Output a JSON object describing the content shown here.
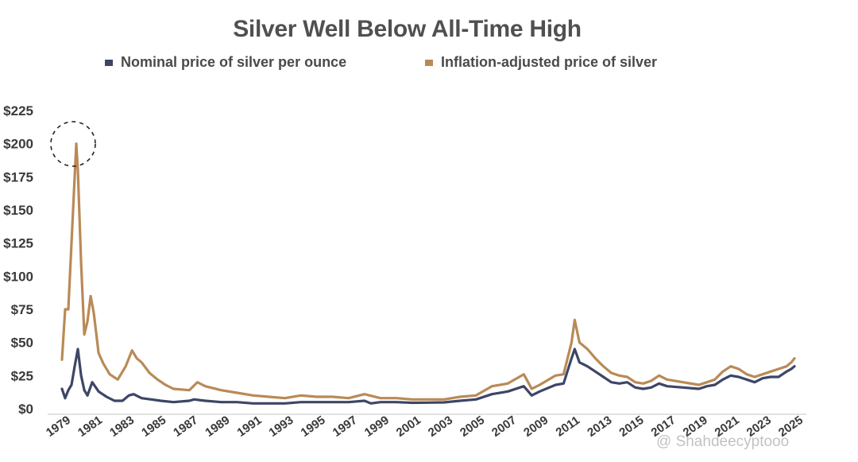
{
  "chart_data": {
    "type": "line",
    "title": "Silver Well Below All-Time High",
    "xlabel": "",
    "ylabel": "",
    "ylim": [
      0,
      225
    ],
    "yticks": [
      "$0",
      "$25",
      "$50",
      "$75",
      "$100",
      "$125",
      "$150",
      "$175",
      "$200",
      "$225"
    ],
    "xticks": [
      "1979",
      "1981",
      "1983",
      "1985",
      "1987",
      "1989",
      "1991",
      "1993",
      "1995",
      "1997",
      "1999",
      "2001",
      "2003",
      "2005",
      "2007",
      "2009",
      "2011",
      "2013",
      "2015",
      "2017",
      "2019",
      "2021",
      "2023",
      "2025"
    ],
    "legend_position": "top",
    "grid": false,
    "annotation": "dashed circle around 1980 peak",
    "series": [
      {
        "name": "Nominal price of silver per ounce",
        "color": "#3d4666",
        "points": [
          [
            1979.0,
            15
          ],
          [
            1979.2,
            8
          ],
          [
            1979.4,
            14
          ],
          [
            1979.6,
            18
          ],
          [
            1979.8,
            32
          ],
          [
            1980.0,
            45
          ],
          [
            1980.2,
            25
          ],
          [
            1980.4,
            14
          ],
          [
            1980.6,
            10
          ],
          [
            1980.9,
            20
          ],
          [
            1981.3,
            13
          ],
          [
            1981.8,
            9
          ],
          [
            1982.3,
            6
          ],
          [
            1982.8,
            6
          ],
          [
            1983.2,
            10
          ],
          [
            1983.5,
            11
          ],
          [
            1984.0,
            8
          ],
          [
            1984.6,
            7
          ],
          [
            1985.2,
            6
          ],
          [
            1986.0,
            5
          ],
          [
            1987.0,
            6
          ],
          [
            1987.3,
            7
          ],
          [
            1988.0,
            6
          ],
          [
            1989.0,
            5
          ],
          [
            1990.0,
            5
          ],
          [
            1991.0,
            4
          ],
          [
            1992.0,
            4
          ],
          [
            1993.0,
            4
          ],
          [
            1994.0,
            5
          ],
          [
            1995.0,
            5
          ],
          [
            1996.0,
            5
          ],
          [
            1997.0,
            5
          ],
          [
            1998.0,
            6
          ],
          [
            1998.4,
            4
          ],
          [
            1999.0,
            5
          ],
          [
            2000.0,
            5
          ],
          [
            2001.0,
            4.5
          ],
          [
            2002.0,
            4.6
          ],
          [
            2003.0,
            4.8
          ],
          [
            2004.0,
            6
          ],
          [
            2005.0,
            7
          ],
          [
            2006.0,
            11
          ],
          [
            2007.0,
            13
          ],
          [
            2008.0,
            17
          ],
          [
            2008.5,
            10
          ],
          [
            2009.0,
            13
          ],
          [
            2010.0,
            18
          ],
          [
            2010.5,
            19
          ],
          [
            2011.0,
            38
          ],
          [
            2011.2,
            45
          ],
          [
            2011.5,
            35
          ],
          [
            2012.0,
            32
          ],
          [
            2012.5,
            28
          ],
          [
            2013.0,
            24
          ],
          [
            2013.5,
            20
          ],
          [
            2014.0,
            19
          ],
          [
            2014.5,
            20
          ],
          [
            2015.0,
            16
          ],
          [
            2015.5,
            15
          ],
          [
            2016.0,
            16
          ],
          [
            2016.5,
            19
          ],
          [
            2017.0,
            17
          ],
          [
            2018.0,
            16
          ],
          [
            2019.0,
            15
          ],
          [
            2019.5,
            17
          ],
          [
            2020.0,
            18
          ],
          [
            2020.5,
            22
          ],
          [
            2021.0,
            25
          ],
          [
            2021.5,
            24
          ],
          [
            2022.0,
            22
          ],
          [
            2022.5,
            20
          ],
          [
            2023.0,
            23
          ],
          [
            2023.5,
            24
          ],
          [
            2024.0,
            24
          ],
          [
            2024.5,
            28
          ],
          [
            2024.8,
            30
          ],
          [
            2025.0,
            32
          ]
        ]
      },
      {
        "name": "Inflation-adjusted price of silver",
        "color": "#b98a57",
        "points": [
          [
            1979.0,
            37
          ],
          [
            1979.2,
            75
          ],
          [
            1979.4,
            75
          ],
          [
            1979.5,
            100
          ],
          [
            1979.7,
            150
          ],
          [
            1979.9,
            200
          ],
          [
            1980.0,
            180
          ],
          [
            1980.2,
            110
          ],
          [
            1980.4,
            56
          ],
          [
            1980.6,
            66
          ],
          [
            1980.8,
            85
          ],
          [
            1981.0,
            72
          ],
          [
            1981.3,
            42
          ],
          [
            1981.6,
            34
          ],
          [
            1982.0,
            26
          ],
          [
            1982.5,
            22
          ],
          [
            1983.0,
            32
          ],
          [
            1983.4,
            44
          ],
          [
            1983.7,
            38
          ],
          [
            1984.0,
            35
          ],
          [
            1984.5,
            27
          ],
          [
            1985.0,
            22
          ],
          [
            1985.5,
            18
          ],
          [
            1986.0,
            15
          ],
          [
            1987.0,
            14
          ],
          [
            1987.5,
            20
          ],
          [
            1988.0,
            17
          ],
          [
            1989.0,
            14
          ],
          [
            1990.0,
            12
          ],
          [
            1991.0,
            10
          ],
          [
            1992.0,
            9
          ],
          [
            1993.0,
            8
          ],
          [
            1994.0,
            10
          ],
          [
            1995.0,
            9
          ],
          [
            1996.0,
            9
          ],
          [
            1997.0,
            8
          ],
          [
            1998.0,
            11
          ],
          [
            1999.0,
            8
          ],
          [
            2000.0,
            8
          ],
          [
            2001.0,
            7
          ],
          [
            2002.0,
            7
          ],
          [
            2003.0,
            7
          ],
          [
            2004.0,
            9
          ],
          [
            2005.0,
            10
          ],
          [
            2006.0,
            17
          ],
          [
            2007.0,
            19
          ],
          [
            2008.0,
            26
          ],
          [
            2008.5,
            15
          ],
          [
            2009.0,
            18
          ],
          [
            2010.0,
            25
          ],
          [
            2010.5,
            26
          ],
          [
            2011.0,
            50
          ],
          [
            2011.2,
            67
          ],
          [
            2011.5,
            50
          ],
          [
            2012.0,
            45
          ],
          [
            2012.5,
            38
          ],
          [
            2013.0,
            32
          ],
          [
            2013.5,
            27
          ],
          [
            2014.0,
            25
          ],
          [
            2014.5,
            24
          ],
          [
            2015.0,
            20
          ],
          [
            2015.5,
            19
          ],
          [
            2016.0,
            21
          ],
          [
            2016.5,
            25
          ],
          [
            2017.0,
            22
          ],
          [
            2018.0,
            20
          ],
          [
            2019.0,
            18
          ],
          [
            2019.5,
            20
          ],
          [
            2020.0,
            22
          ],
          [
            2020.5,
            28
          ],
          [
            2021.0,
            32
          ],
          [
            2021.5,
            30
          ],
          [
            2022.0,
            26
          ],
          [
            2022.5,
            24
          ],
          [
            2023.0,
            26
          ],
          [
            2023.5,
            28
          ],
          [
            2024.0,
            30
          ],
          [
            2024.5,
            32
          ],
          [
            2024.8,
            35
          ],
          [
            2025.0,
            38
          ]
        ]
      }
    ]
  },
  "watermark": "@ Shahdeecyptooo"
}
